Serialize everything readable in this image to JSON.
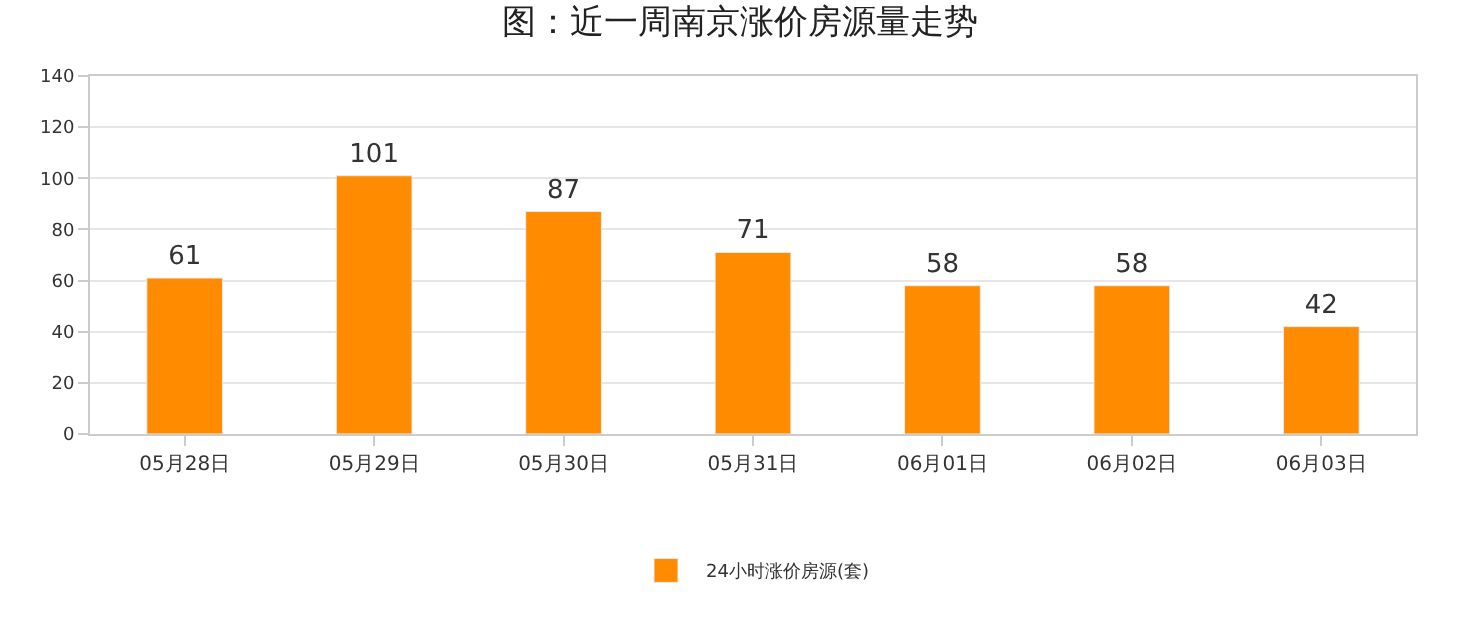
{
  "chart_data": {
    "type": "bar",
    "title": "图：近一周南京涨价房源量走势",
    "categories": [
      "05月28日",
      "05月29日",
      "05月30日",
      "05月31日",
      "06月01日",
      "06月02日",
      "06月03日"
    ],
    "series": [
      {
        "name": "24小时涨价房源(套)",
        "color": "#ff8c00",
        "values": [
          61,
          101,
          87,
          71,
          58,
          58,
          42
        ]
      }
    ],
    "ylim": [
      0,
      140
    ],
    "yticks": [
      0,
      20,
      40,
      60,
      80,
      100,
      120,
      140
    ],
    "grid": "y",
    "legend": "bottom",
    "data_labels": true
  }
}
